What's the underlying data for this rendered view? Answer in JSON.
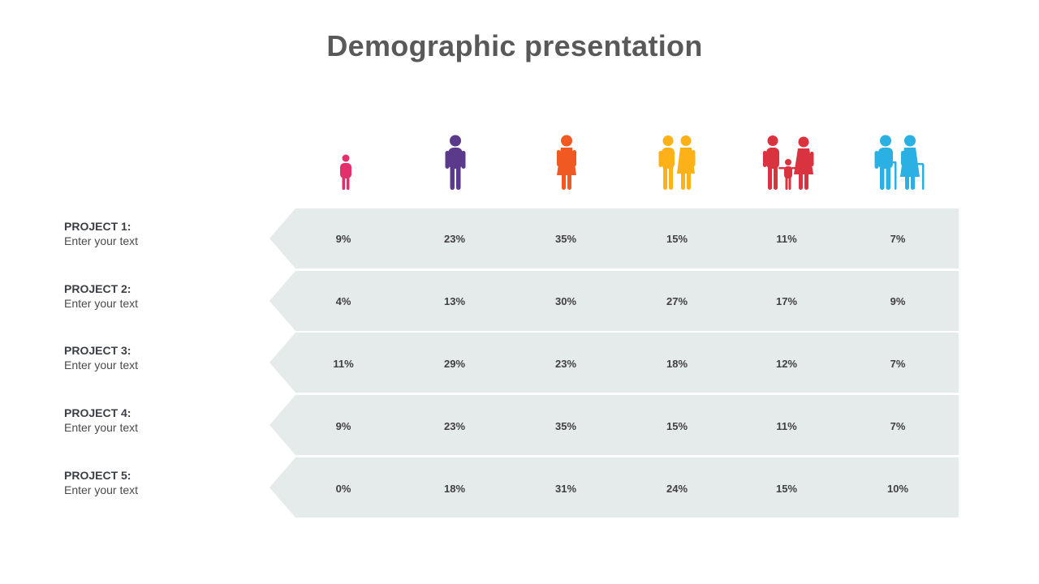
{
  "title": "Demographic presentation",
  "colors": {
    "child": "#e3306c",
    "teen": "#5b3a8c",
    "woman": "#f05a22",
    "couple": "#fbb117",
    "family": "#d9333f",
    "elderly": "#2ab0e3",
    "band": "#e5eaea"
  },
  "icons": [
    "child-icon",
    "young-man-icon",
    "woman-icon",
    "couple-icon",
    "family-icon",
    "elderly-couple-icon"
  ],
  "rows": [
    {
      "name": "PROJECT 1:",
      "desc": "Enter your text",
      "values": [
        "9%",
        "23%",
        "35%",
        "15%",
        "11%",
        "7%"
      ]
    },
    {
      "name": "PROJECT 2:",
      "desc": "Enter your text",
      "values": [
        "4%",
        "13%",
        "30%",
        "27%",
        "17%",
        "9%"
      ]
    },
    {
      "name": "PROJECT 3:",
      "desc": "Enter your text",
      "values": [
        "11%",
        "29%",
        "23%",
        "18%",
        "12%",
        "7%"
      ]
    },
    {
      "name": "PROJECT 4:",
      "desc": "Enter your text",
      "values": [
        "9%",
        "23%",
        "35%",
        "15%",
        "11%",
        "7%"
      ]
    },
    {
      "name": "PROJECT 5:",
      "desc": "Enter your text",
      "values": [
        "0%",
        "18%",
        "31%",
        "24%",
        "15%",
        "10%"
      ]
    }
  ]
}
